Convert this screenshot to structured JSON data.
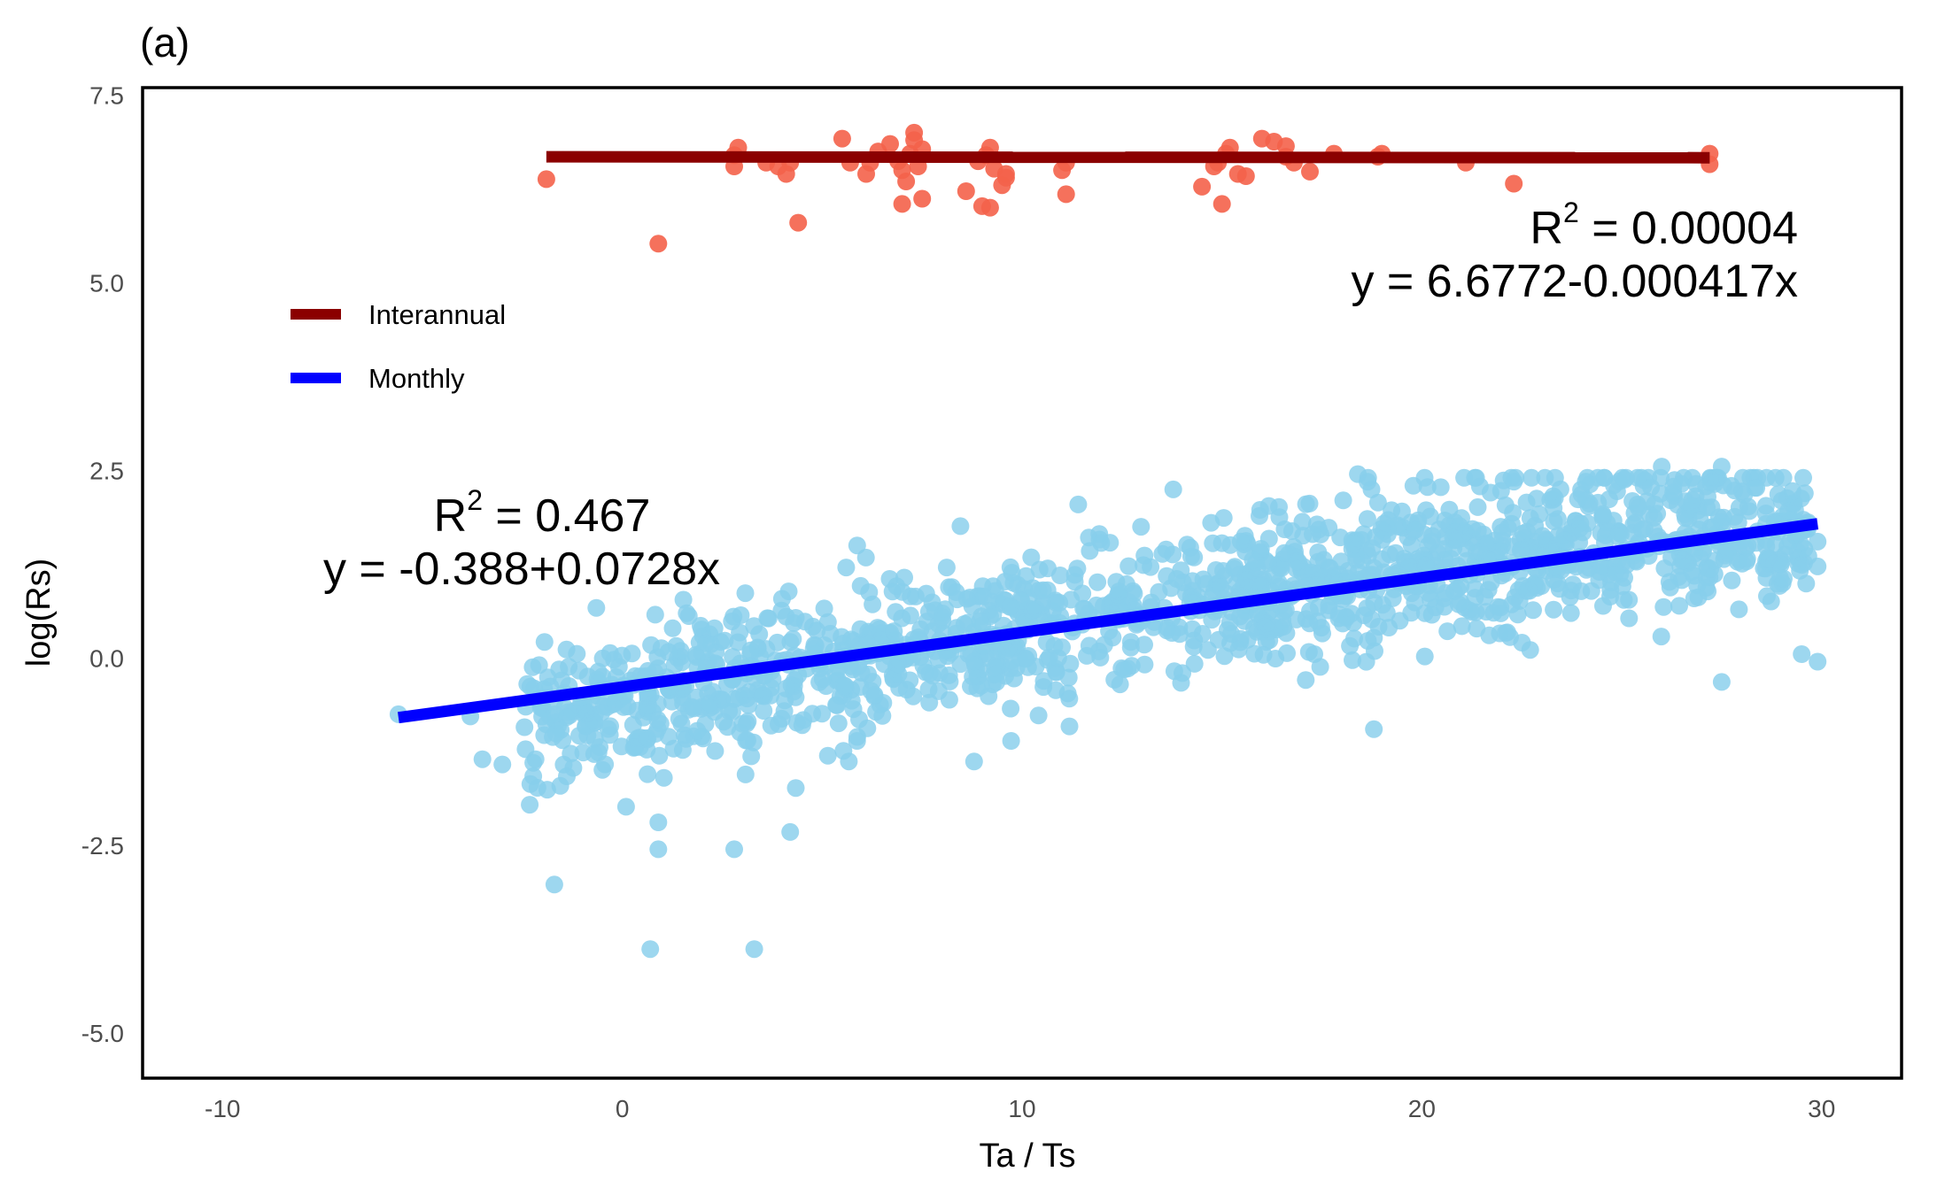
{
  "chart_data": {
    "type": "scatter",
    "panel_label": "(a)",
    "xlabel": "Ta / Ts",
    "ylabel": "log(Rs)",
    "xlim": [
      -12,
      32
    ],
    "ylim": [
      -5.6,
      7.6
    ],
    "x_ticks": [
      -10,
      0,
      10,
      20,
      30
    ],
    "y_ticks": [
      7.5,
      5.0,
      2.5,
      0.0,
      -2.5,
      -5.0
    ],
    "x_tick_labels": [
      "-10",
      "0",
      "10",
      "20",
      "30"
    ],
    "y_tick_labels": [
      "7.5",
      "5.0",
      "2.5",
      "0.0",
      "-2.5",
      "-5.0"
    ],
    "grid": false,
    "legend_position": "upper-left",
    "legend": [
      {
        "label": "Interannual",
        "color": "#8B0000"
      },
      {
        "label": "Monthly",
        "color": "#0000FF"
      }
    ],
    "series": [
      {
        "name": "Interannual",
        "point_color": "#F4624A",
        "line_color": "#8B0000",
        "fit": {
          "intercept": 6.6772,
          "slope": -0.000417,
          "x_range": [
            -1.9,
            27.2
          ]
        },
        "annotation": {
          "r2_prefix": "R",
          "r2_sup": "2",
          "r2_value": " = 0.00004",
          "equation": "y = 6.6772-0.000417x"
        },
        "points": [
          [
            -1.9,
            6.38
          ],
          [
            0.9,
            5.52
          ],
          [
            2.8,
            6.55
          ],
          [
            2.8,
            6.7
          ],
          [
            2.9,
            6.8
          ],
          [
            3.6,
            6.6
          ],
          [
            3.9,
            6.55
          ],
          [
            4.1,
            6.45
          ],
          [
            4.2,
            6.6
          ],
          [
            4.4,
            5.8
          ],
          [
            5.5,
            6.92
          ],
          [
            5.7,
            6.6
          ],
          [
            6.1,
            6.45
          ],
          [
            6.2,
            6.6
          ],
          [
            6.4,
            6.75
          ],
          [
            6.7,
            6.85
          ],
          [
            6.9,
            6.62
          ],
          [
            7.0,
            6.5
          ],
          [
            7.0,
            6.05
          ],
          [
            7.1,
            6.35
          ],
          [
            7.2,
            6.72
          ],
          [
            7.3,
            6.9
          ],
          [
            7.3,
            7.0
          ],
          [
            7.4,
            6.55
          ],
          [
            7.5,
            6.12
          ],
          [
            7.5,
            6.78
          ],
          [
            8.6,
            6.22
          ],
          [
            8.9,
            6.62
          ],
          [
            9.0,
            6.02
          ],
          [
            9.1,
            6.7
          ],
          [
            9.2,
            6.0
          ],
          [
            9.2,
            6.8
          ],
          [
            9.3,
            6.52
          ],
          [
            9.5,
            6.3
          ],
          [
            9.6,
            6.45
          ],
          [
            9.6,
            6.4
          ],
          [
            11.0,
            6.5
          ],
          [
            11.1,
            6.6
          ],
          [
            11.1,
            6.18
          ],
          [
            14.5,
            6.28
          ],
          [
            14.8,
            6.55
          ],
          [
            14.9,
            6.6
          ],
          [
            15.0,
            6.05
          ],
          [
            15.1,
            6.72
          ],
          [
            15.2,
            6.8
          ],
          [
            15.4,
            6.45
          ],
          [
            15.6,
            6.42
          ],
          [
            16.0,
            6.92
          ],
          [
            16.3,
            6.88
          ],
          [
            16.6,
            6.68
          ],
          [
            16.6,
            6.82
          ],
          [
            16.8,
            6.6
          ],
          [
            17.2,
            6.48
          ],
          [
            17.8,
            6.72
          ],
          [
            18.9,
            6.68
          ],
          [
            19.0,
            6.72
          ],
          [
            21.1,
            6.6
          ],
          [
            22.3,
            6.32
          ],
          [
            27.2,
            6.72
          ],
          [
            27.2,
            6.58
          ]
        ]
      },
      {
        "name": "Monthly",
        "point_color": "#87CEEB",
        "line_color": "#0000FF",
        "fit": {
          "intercept": -0.388,
          "slope": 0.0728,
          "x_range": [
            -5.6,
            29.9
          ]
        },
        "annotation": {
          "r2_prefix": "R",
          "r2_sup": "2",
          "r2_value": " = 0.467",
          "equation": "y = -0.388+0.0728x"
        },
        "n_points": 1650,
        "noise_sd": 0.5,
        "outliers": [
          [
            -5.6,
            -0.75
          ],
          [
            -3.8,
            -0.78
          ],
          [
            -3.5,
            -1.35
          ],
          [
            -3.0,
            -1.42
          ],
          [
            -2.3,
            -1.68
          ],
          [
            -1.7,
            -3.02
          ],
          [
            0.7,
            -3.88
          ],
          [
            3.3,
            -3.88
          ],
          [
            0.9,
            -2.55
          ],
          [
            2.8,
            -2.55
          ],
          [
            4.2,
            -2.32
          ],
          [
            8.8,
            -1.38
          ],
          [
            18.8,
            -0.95
          ],
          [
            27.5,
            -0.32
          ],
          [
            27.5,
            2.55
          ],
          [
            18.4,
            2.45
          ],
          [
            29.9,
            1.22
          ],
          [
            29.9,
            1.55
          ],
          [
            29.9,
            -0.05
          ],
          [
            29.5,
            0.05
          ],
          [
            26.0,
            2.55
          ],
          [
            24.1,
            2.35
          ],
          [
            22.3,
            2.35
          ]
        ]
      }
    ]
  }
}
